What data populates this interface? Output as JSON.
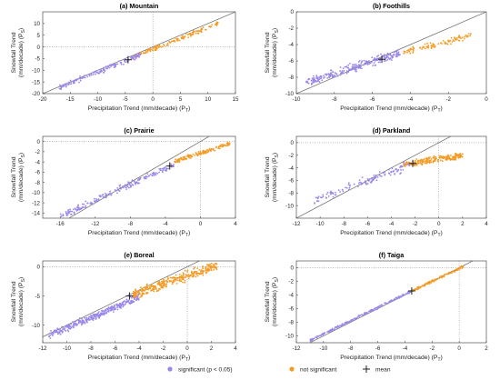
{
  "colors": {
    "significant": "#9b86ec",
    "not_significant": "#f59a23",
    "mean": "#222222",
    "one_to_one": "#666666"
  },
  "legend": {
    "significant": "significant (p < 0.05)",
    "not_significant": "not significant",
    "mean": "mean"
  },
  "chart_data": [
    {
      "type": "scatter",
      "title": "(a) Mountain",
      "xlabel": "Precipitation Trend (mm/decade) (P",
      "xlabel_sub": "T",
      "xlabel_close": ")",
      "ylabel_line1": "Snowfall Trend",
      "ylabel_line2": "(mm/decade) (P",
      "ylabel_sub": "S",
      "ylabel_close": ")",
      "xlim": [
        -20,
        15
      ],
      "ylim": [
        -20,
        15
      ],
      "xticks": [
        "-20",
        "-15",
        "-10",
        "-5",
        "0",
        "5",
        "10",
        "15"
      ],
      "xtick_values": [
        -20,
        -15,
        -10,
        -5,
        0,
        5,
        10,
        15
      ],
      "yticks": [
        "-20",
        "-15",
        "-10",
        "-5",
        "0",
        "5",
        "10"
      ],
      "ytick_values": [
        -20,
        -15,
        -10,
        -5,
        0,
        5,
        10
      ],
      "mean": [
        -4.5,
        -5.5
      ],
      "significant": {
        "x_range": [
          -17,
          -2
        ],
        "slope": 0.95,
        "intercept": -1.2,
        "spread": 0.9,
        "count": 160
      },
      "not_significant": {
        "x_range": [
          -4,
          12
        ],
        "slope": 0.93,
        "intercept": -1.0,
        "spread": 0.8,
        "count": 150
      }
    },
    {
      "type": "scatter",
      "title": "(b) Foothills",
      "xlabel": "Precipitation Trend (mm/decade) (P",
      "xlabel_sub": "T",
      "xlabel_close": ")",
      "ylabel_line1": "Snowfall Trend",
      "ylabel_line2": "(mm/decade) (P",
      "ylabel_sub": "S",
      "ylabel_close": ")",
      "xlim": [
        -10,
        0
      ],
      "ylim": [
        -10,
        0
      ],
      "xticks": [
        "-10",
        "-8",
        "-6",
        "-4",
        "-2",
        "0"
      ],
      "xtick_values": [
        -10,
        -8,
        -6,
        -4,
        -2,
        0
      ],
      "yticks": [
        "-10",
        "-8",
        "-6",
        "-4",
        "-2",
        "0"
      ],
      "ytick_values": [
        -10,
        -8,
        -6,
        -4,
        -2,
        0
      ],
      "mean": [
        -5.5,
        -5.8
      ],
      "significant": {
        "x_range": [
          -9.5,
          -4.5
        ],
        "slope": 0.75,
        "intercept": -1.6,
        "spread": 0.45,
        "count": 260
      },
      "not_significant": {
        "x_range": [
          -4.5,
          -0.8
        ],
        "slope": 0.55,
        "intercept": -2.5,
        "spread": 0.3,
        "count": 100
      }
    },
    {
      "type": "scatter",
      "title": "(c) Prairie",
      "xlabel": "Precipitation Trend (mm/decade) (P",
      "xlabel_sub": "T",
      "xlabel_close": ")",
      "ylabel_line1": "Snowfall Trend",
      "ylabel_line2": "(mm/decade) (P",
      "ylabel_sub": "S",
      "ylabel_close": ")",
      "xlim": [
        -18,
        4
      ],
      "ylim": [
        -15,
        1
      ],
      "xticks": [
        "-16",
        "-12",
        "-8",
        "-4",
        "0",
        "4"
      ],
      "xtick_values": [
        -16,
        -12,
        -8,
        -4,
        0,
        4
      ],
      "yticks": [
        "-14",
        "-12",
        "-10",
        "-8",
        "-6",
        "-4",
        "-2",
        "0"
      ],
      "ytick_values": [
        -14,
        -12,
        -10,
        -8,
        -6,
        -4,
        -2,
        0
      ],
      "mean": [
        -3.5,
        -4.8
      ],
      "significant": {
        "x_range": [
          -16,
          -3
        ],
        "slope": 0.78,
        "intercept": -2.2,
        "spread": 0.55,
        "count": 200
      },
      "not_significant": {
        "x_range": [
          -3,
          3.5
        ],
        "slope": 0.55,
        "intercept": -2.3,
        "spread": 0.35,
        "count": 150
      }
    },
    {
      "type": "scatter",
      "title": "(d) Parkland",
      "xlabel": "Precipitation Trend (mm/decade) (P",
      "xlabel_sub": "T",
      "xlabel_close": ")",
      "ylabel_line1": "Snowfall Trend",
      "ylabel_line2": "(mm/decade) (P",
      "ylabel_sub": "S",
      "ylabel_close": ")",
      "xlim": [
        -12,
        4
      ],
      "ylim": [
        -12,
        1
      ],
      "xticks": [
        "-12",
        "-10",
        "-8",
        "-6",
        "-4",
        "-2",
        "0",
        "2",
        "4"
      ],
      "xtick_values": [
        -12,
        -10,
        -8,
        -6,
        -4,
        -2,
        0,
        2,
        4
      ],
      "yticks": [
        "-10",
        "-8",
        "-6",
        "-4",
        "-2",
        "0"
      ],
      "ytick_values": [
        -10,
        -8,
        -6,
        -4,
        -2,
        0
      ],
      "mean": [
        -2.2,
        -3.3
      ],
      "significant": {
        "x_range": [
          -10.5,
          -2
        ],
        "slope": 0.72,
        "intercept": -1.7,
        "spread": 0.6,
        "count": 130
      },
      "not_significant": {
        "x_range": [
          -3,
          2
        ],
        "slope": 0.3,
        "intercept": -2.6,
        "spread": 0.45,
        "count": 220
      }
    },
    {
      "type": "scatter",
      "title": "(e) Boreal",
      "xlabel": "Precipitation Trend (mm/decade) (P",
      "xlabel_sub": "T",
      "xlabel_close": ")",
      "ylabel_line1": "Snowfall Trend",
      "ylabel_line2": "(mm/decade) (P",
      "ylabel_sub": "S",
      "ylabel_close": ")",
      "xlim": [
        -12,
        4
      ],
      "ylim": [
        -13,
        1
      ],
      "xticks": [
        "-12",
        "-10",
        "-8",
        "-6",
        "-4",
        "-2",
        "0",
        "2",
        "4"
      ],
      "xtick_values": [
        -12,
        -10,
        -8,
        -6,
        -4,
        -2,
        0,
        2,
        4
      ],
      "yticks": [
        "-10",
        "-5",
        "0"
      ],
      "ytick_values": [
        -10,
        -5,
        0
      ],
      "mean": [
        -4.8,
        -5.0
      ],
      "significant": {
        "x_range": [
          -11.5,
          -4
        ],
        "slope": 0.88,
        "intercept": -1.7,
        "spread": 0.5,
        "count": 320
      },
      "not_significant": {
        "x_range": [
          -4.5,
          2.5
        ],
        "slope": 0.72,
        "intercept": -1.5,
        "spread": 0.7,
        "count": 340
      }
    },
    {
      "type": "scatter",
      "title": "(f) Taiga",
      "xlabel": "Precipitation Trend (mm/decade) (P",
      "xlabel_sub": "T",
      "xlabel_close": ")",
      "ylabel_line1": "Snowfall Trend",
      "ylabel_line2": "(mm/decade) (P",
      "ylabel_sub": "S",
      "ylabel_close": ")",
      "xlim": [
        -12,
        2
      ],
      "ylim": [
        -11,
        1
      ],
      "xticks": [
        "-12",
        "-10",
        "-8",
        "-6",
        "-4",
        "-2",
        "0",
        "2"
      ],
      "xtick_values": [
        -12,
        -10,
        -8,
        -6,
        -4,
        -2,
        0,
        2
      ],
      "yticks": [
        "-10",
        "-8",
        "-6",
        "-4",
        "-2",
        "0"
      ],
      "ytick_values": [
        -10,
        -8,
        -6,
        -4,
        -2,
        0
      ],
      "mean": [
        -3.5,
        -3.4
      ],
      "significant": {
        "x_range": [
          -11,
          -3.5
        ],
        "slope": 0.97,
        "intercept": 0.0,
        "spread": 0.15,
        "count": 220
      },
      "not_significant": {
        "x_range": [
          -3.5,
          0.3
        ],
        "slope": 0.95,
        "intercept": -0.1,
        "spread": 0.15,
        "count": 120
      }
    }
  ]
}
